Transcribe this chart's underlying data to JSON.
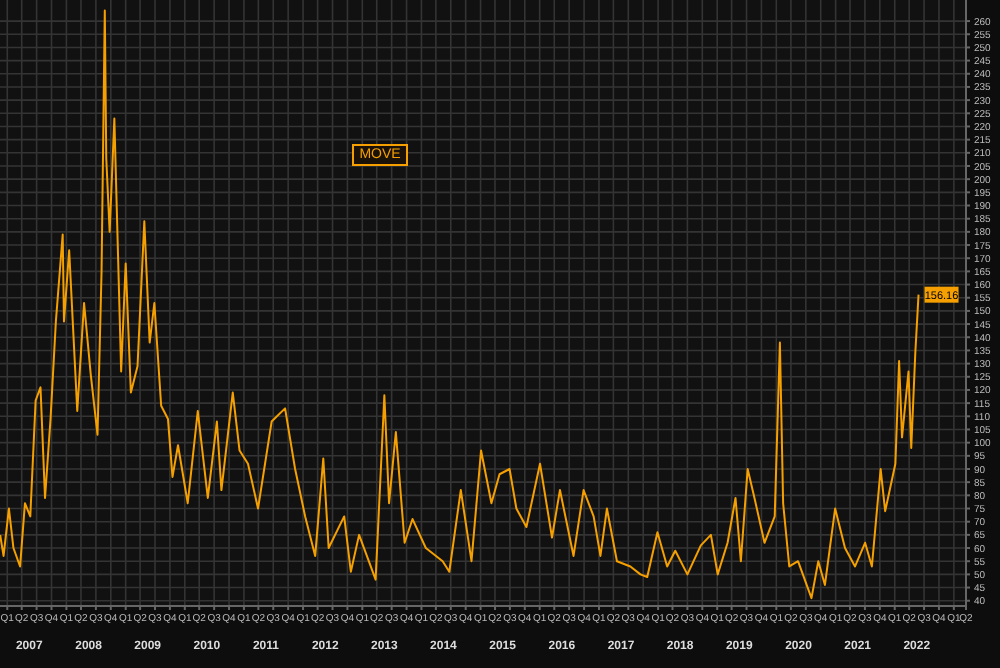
{
  "chart_data": {
    "type": "line",
    "legend": "top",
    "grid": true,
    "x": [
      "2007-01-02",
      "2007-01-23",
      "2007-02-25",
      "2007-03-25",
      "2007-05-05",
      "2007-06-04",
      "2007-07-07",
      "2007-08-09",
      "2007-09-08",
      "2007-10-06",
      "2007-11-09",
      "2007-12-12",
      "2008-01-23",
      "2008-01-31",
      "2008-03-03",
      "2008-04-22",
      "2008-06-03",
      "2008-07-14",
      "2008-08-25",
      "2008-09-19",
      "2008-10-09",
      "2008-10-18",
      "2008-11-08",
      "2008-12-07",
      "2009-01-18",
      "2009-02-15",
      "2009-03-19",
      "2009-04-29",
      "2009-06-10",
      "2009-07-13",
      "2009-08-11",
      "2009-09-22",
      "2009-11-03",
      "2009-12-01",
      "2010-01-04",
      "2010-03-05",
      "2010-05-06",
      "2010-07-07",
      "2010-09-01",
      "2010-09-29",
      "2010-12-08",
      "2011-01-19",
      "2011-03-12",
      "2011-05-13",
      "2011-08-05",
      "2011-10-27",
      "2011-12-28",
      "2012-02-28",
      "2012-04-30",
      "2012-06-19",
      "2012-07-22",
      "2012-10-26",
      "2012-12-06",
      "2013-01-26",
      "2013-03-27",
      "2013-05-08",
      "2013-07-01",
      "2013-07-30",
      "2013-09-10",
      "2013-11-03",
      "2013-12-22",
      "2014-03-14",
      "2014-06-26",
      "2014-08-06",
      "2014-10-16",
      "2014-12-21",
      "2015-02-18",
      "2015-04-23",
      "2015-06-12",
      "2015-08-13",
      "2015-09-24",
      "2015-11-25",
      "2016-02-17",
      "2016-05-01",
      "2016-06-19",
      "2016-09-11",
      "2016-11-12",
      "2017-01-13",
      "2017-02-24",
      "2017-04-05",
      "2017-06-06",
      "2017-08-28",
      "2017-10-29",
      "2017-12-10",
      "2018-02-11",
      "2018-04-12",
      "2018-06-01",
      "2018-08-15",
      "2018-11-06",
      "2019-01-07",
      "2019-02-18",
      "2019-04-20",
      "2019-06-08",
      "2019-07-11",
      "2019-08-22",
      "2019-10-03",
      "2019-12-04",
      "2020-02-05",
      "2020-03-08",
      "2020-03-28",
      "2020-05-05",
      "2020-06-28",
      "2020-09-19",
      "2020-10-31",
      "2020-12-11",
      "2021-02-12",
      "2021-04-14",
      "2021-06-15",
      "2021-08-16",
      "2021-09-27",
      "2021-11-20",
      "2021-12-18",
      "2022-02-19",
      "2022-03-14",
      "2022-04-01",
      "2022-05-11",
      "2022-05-28",
      "2022-06-22",
      "2022-07-12"
    ],
    "series": [
      {
        "name": "MOVE",
        "color": "#f5a000",
        "values": [
          65,
          57,
          75,
          60,
          53,
          77,
          72,
          116,
          121,
          79,
          109,
          146,
          179,
          146,
          173,
          112,
          153,
          126,
          103,
          165,
          264,
          208,
          180,
          223,
          127,
          168,
          119,
          129,
          184,
          138,
          153,
          114,
          109,
          87,
          99,
          77,
          112,
          79,
          108,
          82,
          119,
          97,
          92,
          75,
          108,
          113,
          90,
          72,
          57,
          94,
          60,
          72,
          51,
          65,
          55,
          48,
          118,
          77,
          104,
          62,
          71,
          60,
          55,
          51,
          82,
          55,
          97,
          77,
          88,
          90,
          75,
          68,
          92,
          64,
          82,
          57,
          82,
          72,
          57,
          75,
          55,
          53,
          50,
          49,
          66,
          53,
          59,
          50,
          61,
          65,
          50,
          62,
          79,
          55,
          90,
          79,
          62,
          72,
          138,
          77,
          53,
          55,
          41,
          55,
          46,
          75,
          60,
          53,
          62,
          53,
          90,
          74,
          92,
          131,
          102,
          127,
          98,
          134,
          156.16
        ]
      }
    ],
    "annotations": [
      {
        "text": "156.16",
        "x": "2022-07-12",
        "y": 156.16
      }
    ],
    "xlim": [
      "2007-01-01",
      "2023-05"
    ],
    "xticks": [
      {
        "value": "2007-02-15",
        "label": "Q1"
      },
      {
        "value": "2007-05-15",
        "label": "Q2"
      },
      {
        "value": "2007-08-15",
        "label": "Q3"
      },
      {
        "value": "2007-11-15",
        "label": "Q4"
      },
      {
        "value": "2008-02-15",
        "label": "Q1"
      },
      {
        "value": "2008-05-15",
        "label": "Q2"
      },
      {
        "value": "2008-08-15",
        "label": "Q3"
      },
      {
        "value": "2008-11-15",
        "label": "Q4"
      },
      {
        "value": "2009-02-15",
        "label": "Q1"
      },
      {
        "value": "2009-05-15",
        "label": "Q2"
      },
      {
        "value": "2009-08-15",
        "label": "Q3"
      },
      {
        "value": "2009-11-15",
        "label": "Q4"
      },
      {
        "value": "2010-02-15",
        "label": "Q1"
      },
      {
        "value": "2010-05-15",
        "label": "Q2"
      },
      {
        "value": "2010-08-15",
        "label": "Q3"
      },
      {
        "value": "2010-11-15",
        "label": "Q4"
      },
      {
        "value": "2011-02-15",
        "label": "Q1"
      },
      {
        "value": "2011-05-15",
        "label": "Q2"
      },
      {
        "value": "2011-08-15",
        "label": "Q3"
      },
      {
        "value": "2011-11-15",
        "label": "Q4"
      },
      {
        "value": "2012-02-15",
        "label": "Q1"
      },
      {
        "value": "2012-05-15",
        "label": "Q2"
      },
      {
        "value": "2012-08-15",
        "label": "Q3"
      },
      {
        "value": "2012-11-15",
        "label": "Q4"
      },
      {
        "value": "2013-02-15",
        "label": "Q1"
      },
      {
        "value": "2013-05-15",
        "label": "Q2"
      },
      {
        "value": "2013-08-15",
        "label": "Q3"
      },
      {
        "value": "2013-11-15",
        "label": "Q4"
      },
      {
        "value": "2014-02-15",
        "label": "Q1"
      },
      {
        "value": "2014-05-15",
        "label": "Q2"
      },
      {
        "value": "2014-08-15",
        "label": "Q3"
      },
      {
        "value": "2014-11-15",
        "label": "Q4"
      },
      {
        "value": "2015-02-15",
        "label": "Q1"
      },
      {
        "value": "2015-05-15",
        "label": "Q2"
      },
      {
        "value": "2015-08-15",
        "label": "Q3"
      },
      {
        "value": "2015-11-15",
        "label": "Q4"
      },
      {
        "value": "2016-02-15",
        "label": "Q1"
      },
      {
        "value": "2016-05-15",
        "label": "Q2"
      },
      {
        "value": "2016-08-15",
        "label": "Q3"
      },
      {
        "value": "2016-11-15",
        "label": "Q4"
      },
      {
        "value": "2017-02-15",
        "label": "Q1"
      },
      {
        "value": "2017-05-15",
        "label": "Q2"
      },
      {
        "value": "2017-08-15",
        "label": "Q3"
      },
      {
        "value": "2017-11-15",
        "label": "Q4"
      },
      {
        "value": "2018-02-15",
        "label": "Q1"
      },
      {
        "value": "2018-05-15",
        "label": "Q2"
      },
      {
        "value": "2018-08-15",
        "label": "Q3"
      },
      {
        "value": "2018-11-15",
        "label": "Q4"
      },
      {
        "value": "2019-02-15",
        "label": "Q1"
      },
      {
        "value": "2019-05-15",
        "label": "Q2"
      },
      {
        "value": "2019-08-15",
        "label": "Q3"
      },
      {
        "value": "2019-11-15",
        "label": "Q4"
      },
      {
        "value": "2020-02-15",
        "label": "Q1"
      },
      {
        "value": "2020-05-15",
        "label": "Q2"
      },
      {
        "value": "2020-08-15",
        "label": "Q3"
      },
      {
        "value": "2020-11-15",
        "label": "Q4"
      },
      {
        "value": "2021-02-15",
        "label": "Q1"
      },
      {
        "value": "2021-05-15",
        "label": "Q2"
      },
      {
        "value": "2021-08-15",
        "label": "Q3"
      },
      {
        "value": "2021-11-15",
        "label": "Q4"
      },
      {
        "value": "2022-02-15",
        "label": "Q1"
      },
      {
        "value": "2022-05-15",
        "label": "Q2"
      },
      {
        "value": "2022-08-15",
        "label": "Q3"
      },
      {
        "value": "2022-11-15",
        "label": "Q4"
      },
      {
        "value": "2023-02-15",
        "label": "Q1"
      },
      {
        "value": "2023-05-01",
        "label": "Q2"
      }
    ],
    "x2lim": [
      "2007-01-01",
      "2023-05"
    ],
    "x2ticks": [
      {
        "value": "2007-07-01",
        "label": "2007"
      },
      {
        "value": "2008-07-01",
        "label": "2008"
      },
      {
        "value": "2009-07-01",
        "label": "2009"
      },
      {
        "value": "2010-07-01",
        "label": "2010"
      },
      {
        "value": "2011-07-01",
        "label": "2011"
      },
      {
        "value": "2012-07-01",
        "label": "2012"
      },
      {
        "value": "2013-07-01",
        "label": "2013"
      },
      {
        "value": "2014-07-01",
        "label": "2014"
      },
      {
        "value": "2015-07-01",
        "label": "2015"
      },
      {
        "value": "2016-07-01",
        "label": "2016"
      },
      {
        "value": "2017-07-01",
        "label": "2017"
      },
      {
        "value": "2018-07-01",
        "label": "2018"
      },
      {
        "value": "2019-07-01",
        "label": "2019"
      },
      {
        "value": "2020-07-01",
        "label": "2020"
      },
      {
        "value": "2021-07-01",
        "label": "2021"
      },
      {
        "value": "2022-07-01",
        "label": "2022"
      }
    ],
    "ylim": [
      38,
      268
    ],
    "yticks": [
      40,
      45,
      50,
      55,
      60,
      65,
      70,
      75,
      80,
      85,
      90,
      95,
      100,
      105,
      110,
      115,
      120,
      125,
      130,
      135,
      140,
      145,
      150,
      155,
      160,
      165,
      170,
      175,
      180,
      185,
      190,
      195,
      200,
      205,
      210,
      215,
      220,
      225,
      230,
      235,
      240,
      245,
      250,
      255,
      260
    ]
  }
}
